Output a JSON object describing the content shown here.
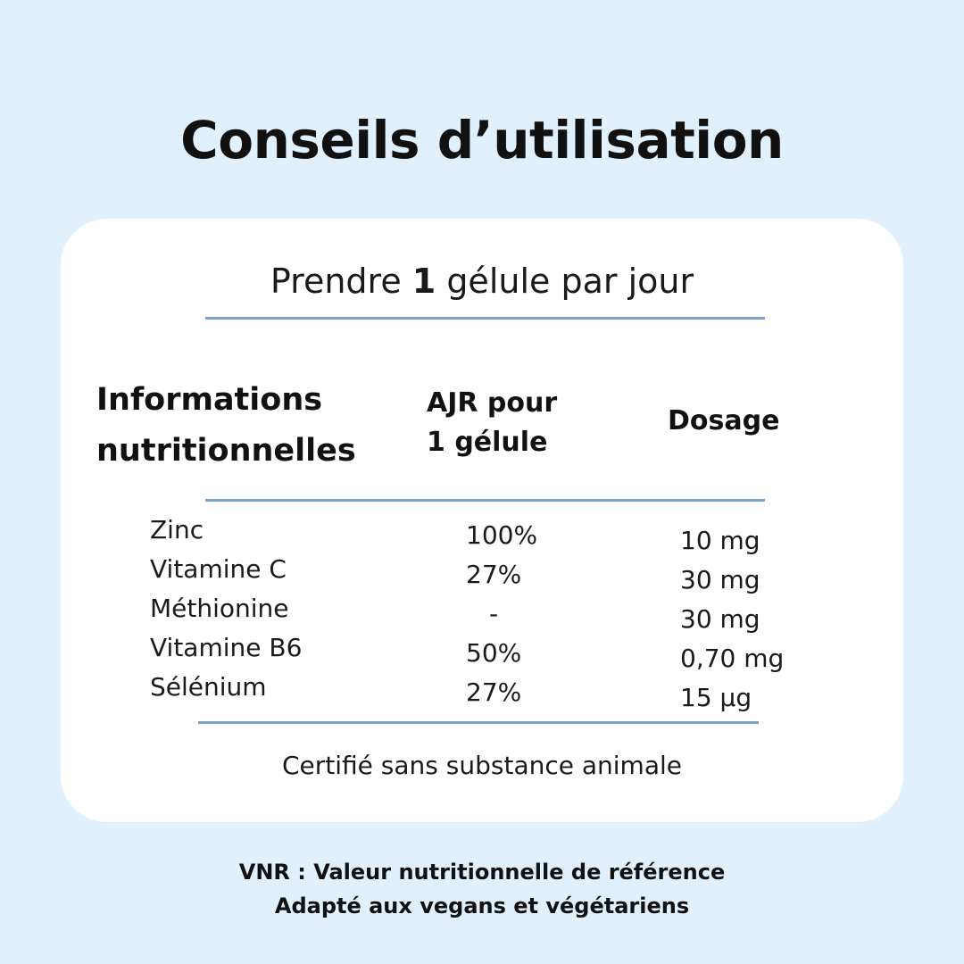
{
  "page": {
    "title": "Conseils d’utilisation",
    "background_color": "#e1f0fd",
    "accent_line_color": "#7ba2c9"
  },
  "usage": {
    "prefix": "Prendre ",
    "quantity": "1",
    "suffix": " gélule par jour"
  },
  "table": {
    "headers": {
      "info_line1": "Informations",
      "info_line2": "nutritionnelles",
      "ajr_line1": "AJR pour",
      "ajr_line2": "1 gélule",
      "dosage": "Dosage"
    },
    "rows": [
      {
        "name": "Zinc",
        "ajr": "100%",
        "dosage": "10 mg"
      },
      {
        "name": "Vitamine C",
        "ajr": "27%",
        "dosage": "30 mg"
      },
      {
        "name": "Méthionine",
        "ajr": "-",
        "dosage": "30 mg"
      },
      {
        "name": "Vitamine B6",
        "ajr": "50%",
        "dosage": "0,70 mg"
      },
      {
        "name": "Sélénium",
        "ajr": "27%",
        "dosage": "15 µg"
      }
    ]
  },
  "certification": "Certifié sans substance animale",
  "footer": {
    "line1": "VNR : Valeur nutritionnelle de référence",
    "line2": "Adapté aux vegans et végétariens"
  }
}
